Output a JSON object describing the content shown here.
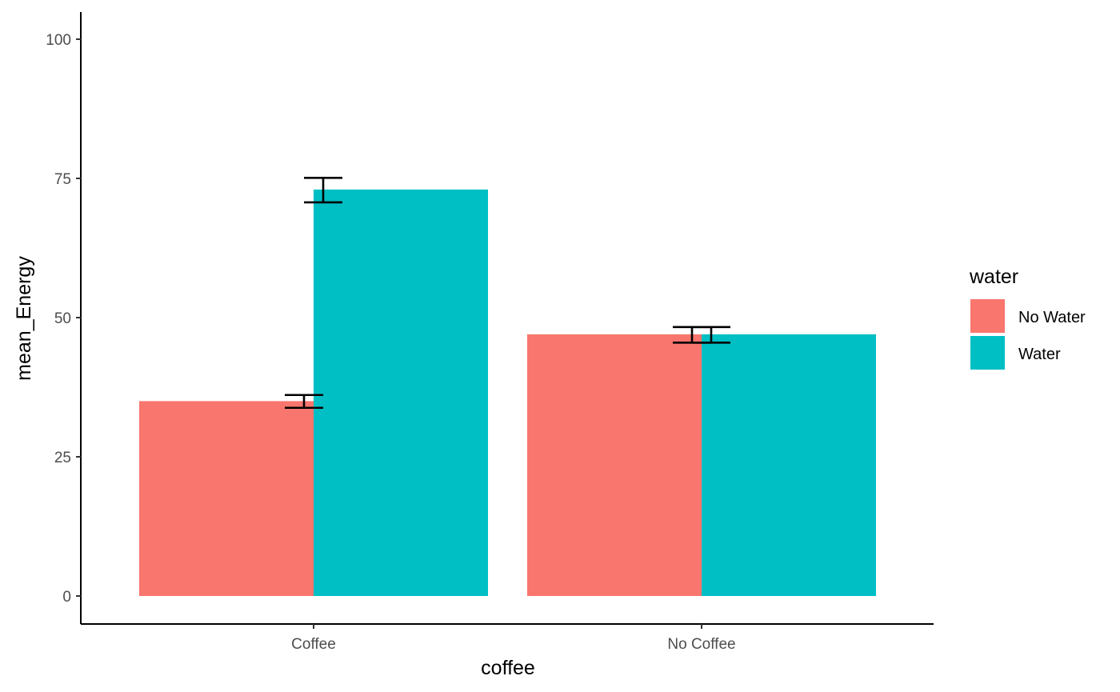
{
  "chart_data": {
    "type": "bar",
    "title": "",
    "xlabel": "coffee",
    "ylabel": "mean_Energy",
    "categories": [
      "Coffee",
      "No Coffee"
    ],
    "series": [
      {
        "name": "No Water",
        "color": "#F8766D",
        "values": [
          35,
          47
        ],
        "error_low": [
          33.8,
          45.5
        ],
        "error_high": [
          36.1,
          48.3
        ]
      },
      {
        "name": "Water",
        "color": "#00BFC4",
        "values": [
          73,
          47
        ],
        "error_low": [
          70.7,
          45.5
        ],
        "error_high": [
          75.1,
          48.3
        ]
      }
    ],
    "ylim": [
      0,
      105
    ],
    "yticks": [
      0,
      25,
      50,
      75,
      100
    ],
    "ytick_labels": [
      "0",
      "25",
      "50",
      "75",
      "100"
    ],
    "legend": {
      "title": "water",
      "position": "right"
    },
    "grid": false
  }
}
